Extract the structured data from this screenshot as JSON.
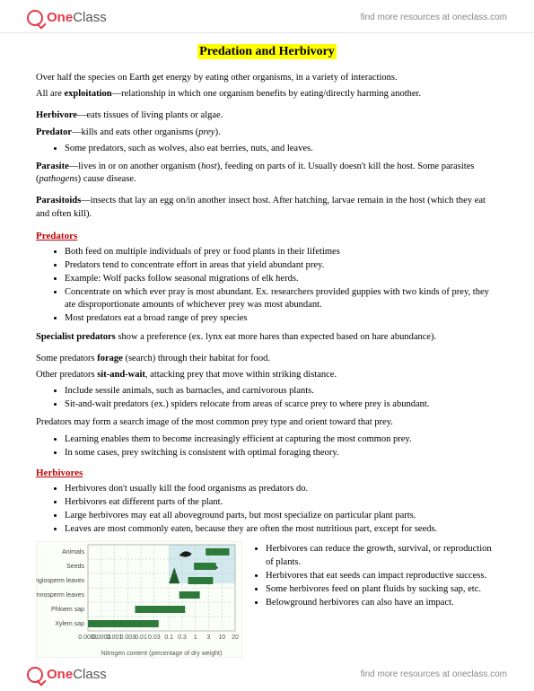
{
  "header": {
    "logo_one": "One",
    "logo_class": "Class",
    "link_text": "find more resources at oneclass.com"
  },
  "title": "Predation and Herbivory",
  "intro": {
    "p1": "Over half the species on Earth get energy by eating other organisms, in a variety of interactions.",
    "p2a": "All are ",
    "p2b": "exploitation",
    "p2c": "—relationship in which one organism benefits by eating/directly harming another."
  },
  "defs": {
    "herb_t": "Herbivore",
    "herb_d": "—eats tissues of living plants or algae.",
    "pred_t": "Predator",
    "pred_d": "—kills and eats other organisms (",
    "pred_i": "prey",
    "pred_e": ").",
    "pred_li": "Some predators, such as wolves, also eat berries, nuts, and leaves.",
    "para_t": "Parasite",
    "para_d1": "—lives in or on another organism (",
    "para_i": "host",
    "para_d2": "), feeding on parts of it. Usually doesn't kill the host. Some parasites (",
    "para_i2": "pathogens",
    "para_d3": ") cause disease.",
    "ptoid_t": "Parasitoids",
    "ptoid_d": "—insects that lay an egg on/in another insect host. After hatching, larvae remain in the host (which they eat and often kill)."
  },
  "predators": {
    "heading": "Predators",
    "li1": "Both feed on multiple individuals of prey or food plants in their lifetimes",
    "li2": "Predators tend to concentrate effort in areas that yield abundant prey.",
    "li3": "Example: Wolf packs follow seasonal migrations of elk herds.",
    "li4": "Concentrate on which ever pray is most abundant. Ex. researchers provided guppies with two kinds of prey, they ate disproportionate amounts of whichever prey was most abundant.",
    "li5": "Most predators eat a broad range of prey species",
    "spec_t": "Specialist predators",
    "spec_d": " show a preference (ex. lynx eat more hares than expected based on hare abundance).",
    "forage1": "Some predators ",
    "forage_b": "forage",
    "forage2": " (search) through their habitat for food.",
    "saw1": "Other predators ",
    "saw_b": "sit-and-wait",
    "saw2": ", attacking prey that move within striking distance.",
    "saw_li1": "Include sessile animals, such as barnacles, and carnivorous plants.",
    "saw_li2": "Sit-and-wait predators (ex.) spiders relocate from areas of scarce prey to where prey is abundant.",
    "search_p": "Predators may form a search image of the most common prey type and orient toward that prey.",
    "search_li1": "Learning enables them to become increasingly efficient at capturing the most common prey.",
    "search_li2": "In some cases, prey switching is consistent with optimal foraging theory."
  },
  "herbivores": {
    "heading": "Herbivores",
    "li1": "Herbivores don't usually kill the food organisms as predators do.",
    "li2": "Herbivores eat different parts of the plant.",
    "li3": "Large herbivores may eat all aboveground parts, but most specialize on particular plant parts.",
    "li4": "Leaves are most commonly eaten, because they are often the most nutritious part, except for seeds.",
    "r_li1": "Herbivores can reduce the growth, survival, or reproduction of plants.",
    "r_li2": "Herbivores that eat seeds can impact reproductive success.",
    "r_li3": "Some herbivores feed on plant fluids by sucking sap, etc.",
    "r_li4": "Belowground herbivores can also have an impact."
  },
  "chart": {
    "type": "horizontal-range-bar-log",
    "categories": [
      "Animals",
      "Seeds",
      "Angiosperm leaves",
      "Gymnosperm leaves",
      "Phloem sap",
      "Xylem sap"
    ],
    "xlabel": "Nitrogen content (percentage of dry weight)",
    "xticks_labels": [
      "0.0001",
      "0.0003",
      "0.001",
      "0.003",
      "0.01",
      "0.03",
      "0.1",
      "0.3",
      "1",
      "3",
      "10",
      "20"
    ],
    "xticks_pos": [
      0.0,
      0.09,
      0.18,
      0.27,
      0.36,
      0.45,
      0.55,
      0.64,
      0.73,
      0.82,
      0.91,
      1.0
    ],
    "bars": [
      {
        "from": 0.8,
        "to": 0.96
      },
      {
        "from": 0.72,
        "to": 0.87
      },
      {
        "from": 0.68,
        "to": 0.85
      },
      {
        "from": 0.62,
        "to": 0.76
      },
      {
        "from": 0.32,
        "to": 0.66
      },
      {
        "from": 0.0,
        "to": 0.48
      }
    ],
    "bar_color": "#2d7a3a",
    "background_color": "#fafff8",
    "grid_color": "#999999",
    "panel_border": "#cccccc",
    "illustration_bg": "#b8dce8"
  }
}
